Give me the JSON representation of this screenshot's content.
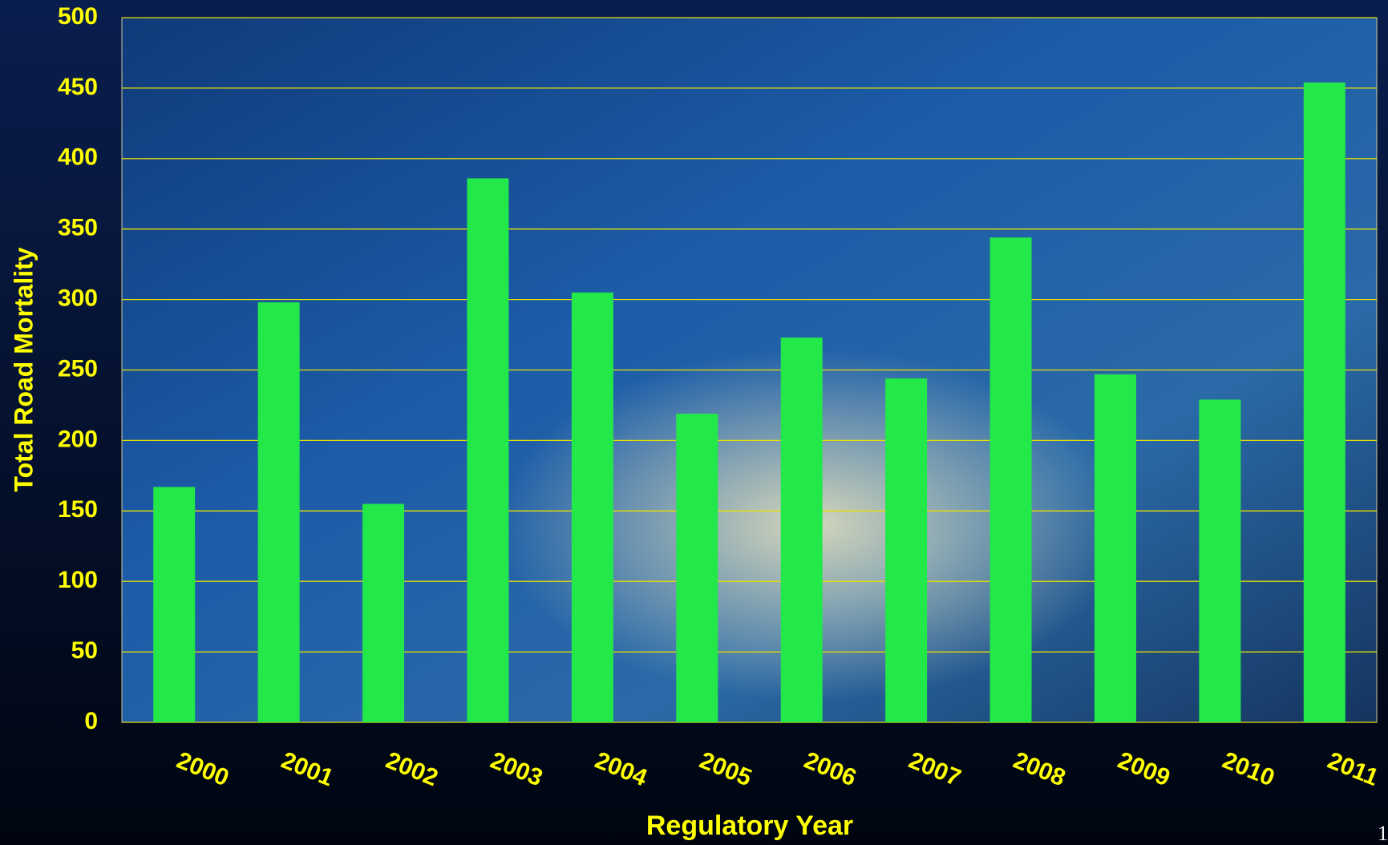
{
  "chart_data": {
    "type": "bar",
    "x_label": "Regulatory Year",
    "y_label": "Total Road Mortality",
    "categories": [
      "2000",
      "2001",
      "2002",
      "2003",
      "2004",
      "2005",
      "2006",
      "2007",
      "2008",
      "2009",
      "2010",
      "2011"
    ],
    "values": [
      167,
      298,
      155,
      386,
      305,
      219,
      273,
      244,
      344,
      247,
      229,
      454
    ],
    "color": "#22e84a",
    "ylim": [
      0,
      500
    ],
    "yticks": [
      0,
      50,
      100,
      150,
      200,
      250,
      300,
      350,
      400,
      450,
      500
    ],
    "grid": true
  },
  "page_number": "1"
}
